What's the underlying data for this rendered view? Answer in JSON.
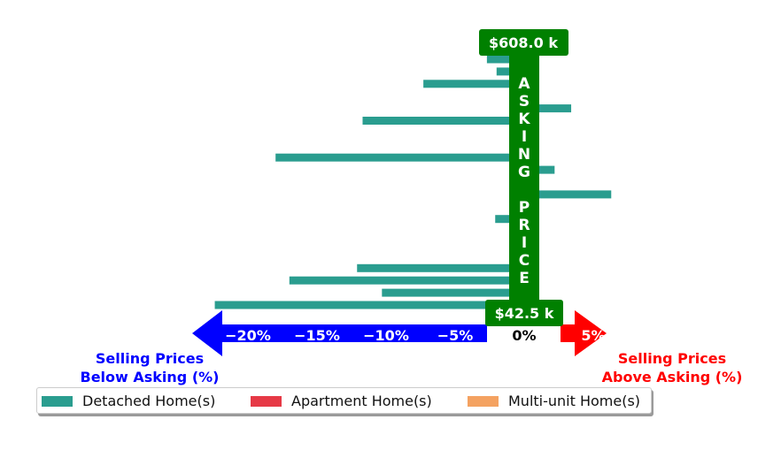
{
  "chart_data": {
    "type": "bar",
    "orientation": "horizontal",
    "series": [
      {
        "name": "Detached Home(s)",
        "color": "#2a9d8f",
        "values": [
          -2.7,
          -2.0,
          -7.3,
          1.0,
          3.4,
          -11.7,
          0.3,
          0.6,
          -18.0,
          2.2,
          0.6,
          6.3,
          0.6,
          -2.1,
          0.6,
          0.6,
          0.6,
          -12.1,
          -17.0,
          -10.3,
          -22.4
        ]
      }
    ],
    "other_series": [
      {
        "name": "Apartment Home(s)",
        "color": "#e63946"
      },
      {
        "name": "Multi-unit Home(s)",
        "color": "#f4a261"
      }
    ],
    "x_ticks": [
      "−20%",
      "−15%",
      "−10%",
      "−5%",
      "0%",
      "5%"
    ],
    "x_tick_values": [
      -20,
      -15,
      -10,
      -5,
      0,
      5
    ],
    "xlim": [
      -24,
      7
    ],
    "asking_price_label": "A S K I N G   P R I C E",
    "asking_price_letters": [
      "A",
      "S",
      "K",
      "I",
      "N",
      "G",
      "P",
      "R",
      "I",
      "C",
      "E"
    ],
    "top_price": "$608.0 k",
    "bottom_price": "$42.5 k",
    "below_label": [
      "Selling Prices",
      "Below Asking (%)"
    ],
    "above_label": [
      "Selling Prices",
      "Above Asking (%)"
    ],
    "colors": {
      "below": "#0000ff",
      "above": "#ff0000",
      "asking": "#008000"
    }
  }
}
